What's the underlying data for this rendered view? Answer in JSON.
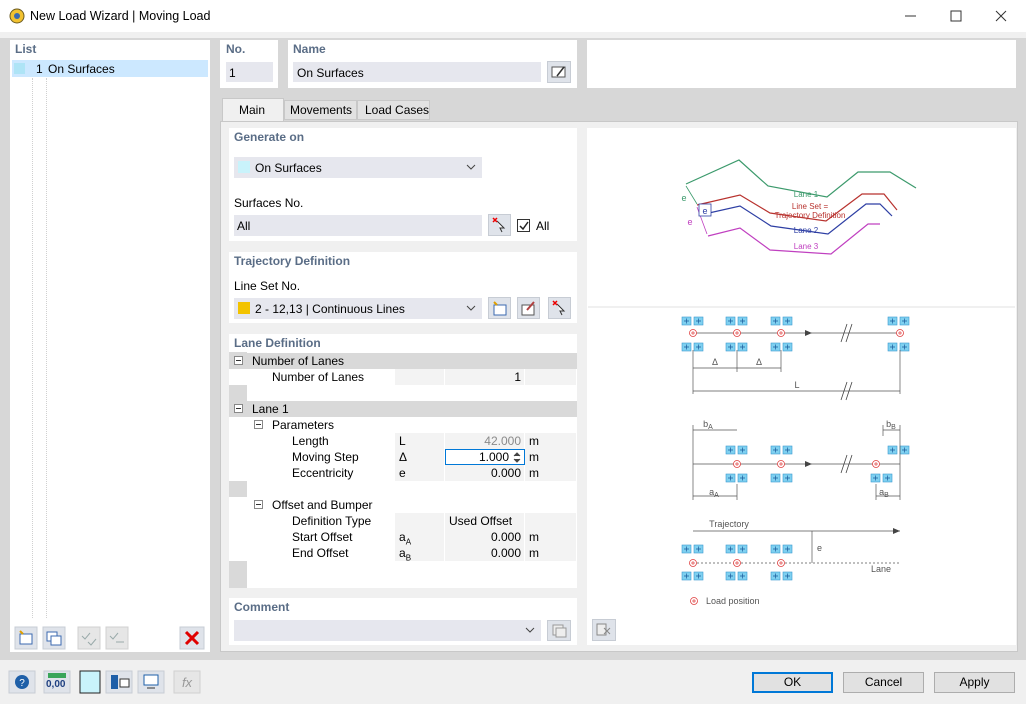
{
  "window": {
    "title": "New Load Wizard | Moving Load"
  },
  "list": {
    "header": "List",
    "items": [
      {
        "number": "1",
        "label": "On Surfaces"
      }
    ]
  },
  "header": {
    "no_label": "No.",
    "no_value": "1",
    "name_label": "Name",
    "name_value": "On Surfaces"
  },
  "tabs": [
    "Main",
    "Movements",
    "Load Cases"
  ],
  "generate_on": {
    "title": "Generate on",
    "value": "On Surfaces",
    "surfaces_label": "Surfaces No.",
    "surfaces_value": "All",
    "all_checkbox": "All"
  },
  "trajectory": {
    "title": "Trajectory Definition",
    "line_set_label": "Line Set No.",
    "line_set_value": "2 - 12,13 | Continuous Lines"
  },
  "lane_definition": {
    "title": "Lane Definition",
    "groups": [
      {
        "title": "Number of Lanes",
        "rows": [
          {
            "label": "Number of Lanes",
            "value": "1"
          }
        ]
      },
      {
        "title": "Lane 1",
        "subgroups": [
          {
            "title": "Parameters",
            "rows": [
              {
                "label": "Length",
                "symbol": "L",
                "value": "42.000",
                "unit": "m",
                "state": "read-only"
              },
              {
                "label": "Moving Step",
                "symbol": "Δ",
                "value": "1.000",
                "unit": "m",
                "state": "focused"
              },
              {
                "label": "Eccentricity",
                "symbol": "e",
                "value": "0.000",
                "unit": "m"
              }
            ]
          },
          {
            "title": "Offset and Bumper",
            "rows": [
              {
                "label": "Definition Type",
                "value": "Used Offset"
              },
              {
                "label": "Start Offset",
                "symbol": "a",
                "symbol_sub": "A",
                "value": "0.000",
                "unit": "m"
              },
              {
                "label": "End Offset",
                "symbol": "a",
                "symbol_sub": "B",
                "value": "0.000",
                "unit": "m"
              }
            ]
          }
        ]
      }
    ]
  },
  "comment": {
    "title": "Comment"
  },
  "diagram": {
    "lane1": "Lane 1",
    "line_set": "Line Set =",
    "trajectory_definition": "Trajectory Definition",
    "lane2": "Lane 2",
    "lane3": "Lane 3",
    "e_labels": [
      "e",
      "e",
      "e",
      "e"
    ],
    "delta_labels": [
      "Δ",
      "Δ"
    ],
    "length": "L",
    "b_a": {
      "base": "b",
      "sub": "A"
    },
    "b_b": {
      "base": "b",
      "sub": "B"
    },
    "a_a": {
      "base": "a",
      "sub": "A"
    },
    "a_b": {
      "base": "a",
      "sub": "B"
    },
    "trajectory": "Trajectory",
    "lane": "Lane",
    "load_position": "Load position"
  },
  "toolbar": {
    "units_icon": "0,00"
  },
  "buttons": {
    "ok": "OK",
    "cancel": "Cancel",
    "apply": "Apply"
  }
}
